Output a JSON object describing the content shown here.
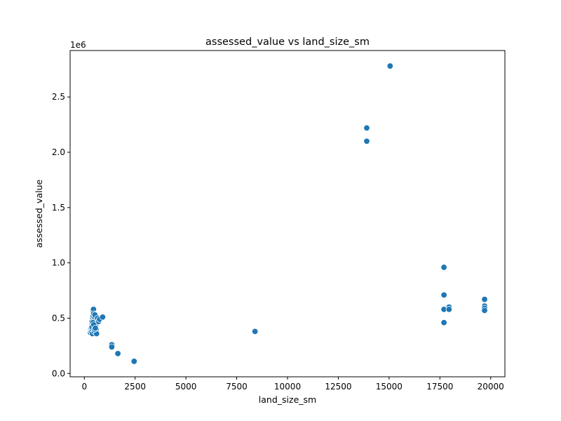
{
  "chart_data": {
    "type": "scatter",
    "title": "assessed_value vs land_size_sm",
    "xlabel": "land_size_sm",
    "ylabel": "assessed_value",
    "y_offset_label": "1e6",
    "xlim": [
      -700,
      20700
    ],
    "ylim": [
      -30000,
      2920000
    ],
    "x_ticks": [
      0,
      2500,
      5000,
      7500,
      10000,
      12500,
      15000,
      17500,
      20000
    ],
    "x_tick_labels": [
      "0",
      "2500",
      "5000",
      "7500",
      "10000",
      "12500",
      "15000",
      "17500",
      "20000"
    ],
    "y_ticks": [
      0,
      500000,
      1000000,
      1500000,
      2000000,
      2500000
    ],
    "y_tick_labels": [
      "0.0",
      "0.5",
      "1.0",
      "1.5",
      "2.0",
      "2.5"
    ],
    "grid": false,
    "marker_color": "#1f77b4",
    "series": [
      {
        "points": [
          [
            300,
            370000
          ],
          [
            320,
            390000
          ],
          [
            340,
            410000
          ],
          [
            350,
            380000
          ],
          [
            360,
            430000
          ],
          [
            370,
            450000
          ],
          [
            380,
            470000
          ],
          [
            390,
            400000
          ],
          [
            400,
            360000
          ],
          [
            410,
            440000
          ],
          [
            420,
            500000
          ],
          [
            430,
            520000
          ],
          [
            440,
            560000
          ],
          [
            450,
            580000
          ],
          [
            460,
            540000
          ],
          [
            470,
            480000
          ],
          [
            480,
            420000
          ],
          [
            490,
            380000
          ],
          [
            500,
            450000
          ],
          [
            510,
            510000
          ],
          [
            520,
            530000
          ],
          [
            540,
            470000
          ],
          [
            560,
            430000
          ],
          [
            580,
            400000
          ],
          [
            600,
            360000
          ],
          [
            620,
            460000
          ],
          [
            650,
            500000
          ],
          [
            700,
            470000
          ],
          [
            750,
            490000
          ],
          [
            900,
            510000
          ],
          [
            380,
            420000
          ],
          [
            420,
            460000
          ],
          [
            460,
            440000
          ],
          [
            500,
            400000
          ],
          [
            540,
            410000
          ],
          [
            1350,
            260000
          ],
          [
            1350,
            240000
          ],
          [
            1650,
            180000
          ],
          [
            2450,
            110000
          ],
          [
            8400,
            380000
          ],
          [
            13900,
            2220000
          ],
          [
            13900,
            2100000
          ],
          [
            15050,
            2780000
          ],
          [
            17700,
            960000
          ],
          [
            17700,
            710000
          ],
          [
            17700,
            580000
          ],
          [
            17700,
            460000
          ],
          [
            17950,
            600000
          ],
          [
            17950,
            580000
          ],
          [
            19700,
            670000
          ],
          [
            19700,
            610000
          ],
          [
            19700,
            590000
          ],
          [
            19700,
            570000
          ]
        ]
      }
    ]
  }
}
